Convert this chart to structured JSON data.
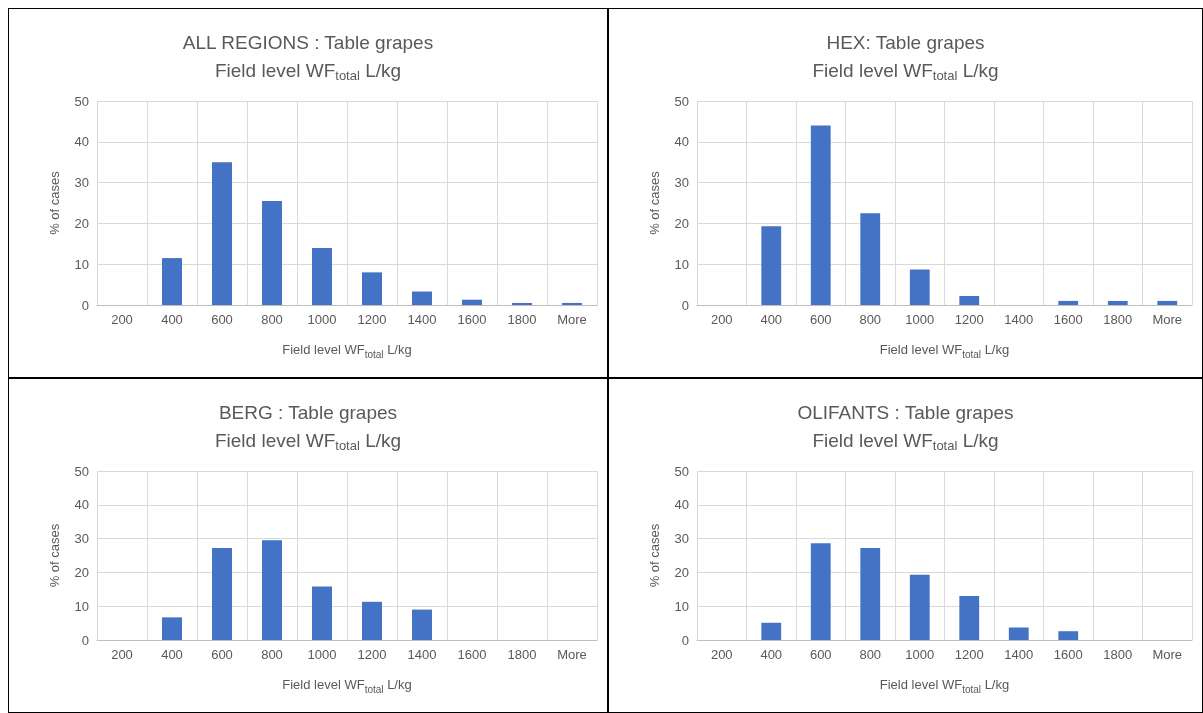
{
  "chart_data": [
    {
      "type": "bar",
      "title": "ALL REGIONS : Table grapes",
      "subtitle": "Field level WF$_{total}$ L/kg",
      "xlabel": "Field level WF$_{total}$ L/kg",
      "ylabel": "% of cases",
      "categories": [
        "200",
        "400",
        "600",
        "800",
        "1000",
        "1200",
        "1400",
        "1600",
        "1800",
        "More"
      ],
      "values": [
        0,
        11.5,
        35,
        25.5,
        14,
        8,
        3.3,
        1.3,
        0.5,
        0.5
      ],
      "color": "#4472c4",
      "ylim": [
        0,
        50
      ],
      "yticks": [
        0,
        10,
        20,
        30,
        40,
        50
      ],
      "grid": true
    },
    {
      "type": "bar",
      "title": "HEX: Table grapes",
      "subtitle": "Field level WF$_{total}$ L/kg",
      "xlabel": "Field level WF$_{total}$ L/kg",
      "ylabel": "% of cases",
      "categories": [
        "200",
        "400",
        "600",
        "800",
        "1000",
        "1200",
        "1400",
        "1600",
        "1800",
        "More"
      ],
      "values": [
        0,
        19.3,
        44,
        22.5,
        8.7,
        2.2,
        0,
        1,
        1,
        1
      ],
      "color": "#4472c4",
      "ylim": [
        0,
        50
      ],
      "yticks": [
        0,
        10,
        20,
        30,
        40,
        50
      ],
      "grid": true
    },
    {
      "type": "bar",
      "title": "BERG : Table grapes",
      "subtitle": "Field level WF$_{total}$ L/kg",
      "xlabel": "Field level WF$_{total}$ L/kg",
      "ylabel": "% of cases",
      "categories": [
        "200",
        "400",
        "600",
        "800",
        "1000",
        "1200",
        "1400",
        "1600",
        "1800",
        "More"
      ],
      "values": [
        0,
        6.7,
        27.2,
        29.5,
        15.8,
        11.3,
        9,
        0,
        0,
        0
      ],
      "color": "#4472c4",
      "ylim": [
        0,
        50
      ],
      "yticks": [
        0,
        10,
        20,
        30,
        40,
        50
      ],
      "grid": true
    },
    {
      "type": "bar",
      "title": "OLIFANTS : Table grapes",
      "subtitle": "Field level WF$_{total}$ L/kg",
      "xlabel": "Field level WF$_{total}$ L/kg",
      "ylabel": "% of cases",
      "categories": [
        "200",
        "400",
        "600",
        "800",
        "1000",
        "1200",
        "1400",
        "1600",
        "1800",
        "More"
      ],
      "values": [
        0,
        5.1,
        28.6,
        27.2,
        19.3,
        13,
        3.7,
        2.6,
        0,
        0
      ],
      "color": "#4472c4",
      "ylim": [
        0,
        50
      ],
      "yticks": [
        0,
        10,
        20,
        30,
        40,
        50
      ],
      "grid": true
    }
  ]
}
